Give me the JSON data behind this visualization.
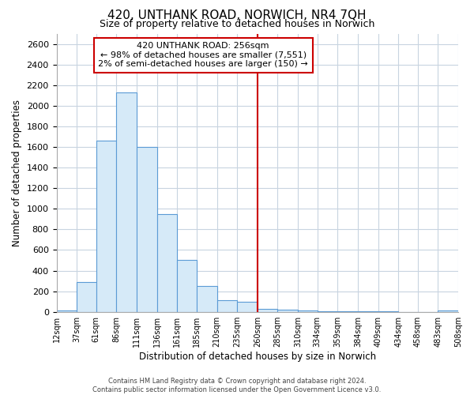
{
  "title": "420, UNTHANK ROAD, NORWICH, NR4 7QH",
  "subtitle": "Size of property relative to detached houses in Norwich",
  "xlabel": "Distribution of detached houses by size in Norwich",
  "ylabel": "Number of detached properties",
  "bar_color": "#d6eaf8",
  "bar_edge_color": "#5b9bd5",
  "background_color": "#ffffff",
  "grid_color": "#c8d4e0",
  "vline_x": 260,
  "vline_color": "#cc0000",
  "annotation_title": "420 UNTHANK ROAD: 256sqm",
  "annotation_line1": "← 98% of detached houses are smaller (7,551)",
  "annotation_line2": "2% of semi-detached houses are larger (150) →",
  "annotation_box_color": "#ffffff",
  "annotation_box_edge": "#cc0000",
  "bin_edges": [
    12,
    37,
    61,
    86,
    111,
    136,
    161,
    185,
    210,
    235,
    260,
    285,
    310,
    334,
    359,
    384,
    409,
    434,
    458,
    483,
    508
  ],
  "bar_heights": [
    15,
    290,
    1660,
    2130,
    1600,
    950,
    500,
    250,
    110,
    95,
    30,
    20,
    10,
    5,
    5,
    3,
    2,
    1,
    1,
    15
  ],
  "tick_labels": [
    "12sqm",
    "37sqm",
    "61sqm",
    "86sqm",
    "111sqm",
    "136sqm",
    "161sqm",
    "185sqm",
    "210sqm",
    "235sqm",
    "260sqm",
    "285sqm",
    "310sqm",
    "334sqm",
    "359sqm",
    "384sqm",
    "409sqm",
    "434sqm",
    "458sqm",
    "483sqm",
    "508sqm"
  ],
  "ylim": [
    0,
    2700
  ],
  "yticks": [
    0,
    200,
    400,
    600,
    800,
    1000,
    1200,
    1400,
    1600,
    1800,
    2000,
    2200,
    2400,
    2600
  ],
  "footer_line1": "Contains HM Land Registry data © Crown copyright and database right 2024.",
  "footer_line2": "Contains public sector information licensed under the Open Government Licence v3.0."
}
